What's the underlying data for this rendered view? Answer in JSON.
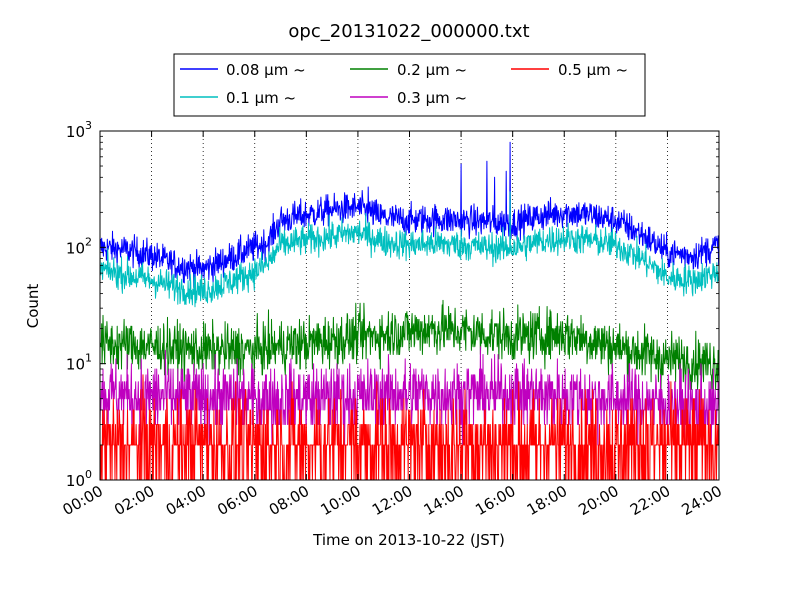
{
  "chart_data": {
    "type": "line",
    "title": "opc_20131022_000000.txt",
    "xlabel": "Time on 2013-10-22 (JST)",
    "ylabel": "Count",
    "y_scale": "log",
    "xlim": [
      "00:00",
      "24:00"
    ],
    "ylim": [
      1,
      1000
    ],
    "x_ticks": [
      "00:00",
      "02:00",
      "04:00",
      "06:00",
      "08:00",
      "10:00",
      "12:00",
      "14:00",
      "16:00",
      "18:00",
      "20:00",
      "22:00",
      "24:00"
    ],
    "y_ticks": [
      {
        "base": "10",
        "exp": "0",
        "value": 1
      },
      {
        "base": "10",
        "exp": "1",
        "value": 10
      },
      {
        "base": "10",
        "exp": "2",
        "value": 100
      },
      {
        "base": "10",
        "exp": "3",
        "value": 1000
      }
    ],
    "grid": "vertical dotted",
    "legend_position": "top-center",
    "series": [
      {
        "name": "0.08 µm ~",
        "color": "#0000ff",
        "noise_decades": 0.09,
        "x_hours": [
          0,
          1,
          2,
          3,
          4,
          5,
          6,
          6.5,
          7,
          8,
          9,
          10,
          11,
          12,
          13,
          14,
          15,
          16,
          17,
          18,
          19,
          20,
          21,
          22,
          23,
          24
        ],
        "y": [
          100,
          95,
          85,
          70,
          65,
          80,
          100,
          110,
          170,
          190,
          210,
          220,
          180,
          170,
          175,
          170,
          165,
          160,
          185,
          200,
          190,
          170,
          130,
          90,
          85,
          105
        ],
        "spikes": [
          {
            "x_hour": 10.4,
            "y": 330
          },
          {
            "x_hour": 14.0,
            "y": 520
          },
          {
            "x_hour": 15.0,
            "y": 550
          },
          {
            "x_hour": 15.3,
            "y": 400
          },
          {
            "x_hour": 15.9,
            "y": 800
          },
          {
            "x_hour": 15.75,
            "y": 450
          }
        ]
      },
      {
        "name": "0.1 µm ~",
        "color": "#00bfbf",
        "noise_decades": 0.09,
        "x_hours": [
          0,
          1,
          2,
          3,
          4,
          5,
          6,
          6.5,
          7,
          8,
          9,
          10,
          11,
          12,
          13,
          14,
          15,
          16,
          17,
          18,
          19,
          20,
          21,
          22,
          23,
          24
        ],
        "y": [
          65,
          58,
          52,
          45,
          42,
          50,
          62,
          72,
          105,
          115,
          125,
          135,
          112,
          105,
          108,
          105,
          100,
          98,
          112,
          120,
          115,
          105,
          80,
          55,
          52,
          62
        ],
        "spikes": [
          {
            "x_hour": 15.9,
            "y": 300
          }
        ]
      },
      {
        "name": "0.2 µm ~",
        "color": "#008000",
        "noise_decades": 0.15,
        "x_hours": [
          0,
          2,
          4,
          6,
          7,
          8,
          10,
          12,
          13,
          14,
          16,
          18,
          19,
          20,
          22,
          24
        ],
        "y": [
          15,
          14,
          13,
          13,
          14,
          15,
          17,
          19,
          20,
          19,
          17,
          18,
          16,
          14,
          11,
          10
        ],
        "spikes": []
      },
      {
        "name": "0.3 µm ~",
        "color": "#bf00bf",
        "noise_decades": 0.2,
        "x_hours": [
          0,
          4,
          8,
          12,
          16,
          20,
          24
        ],
        "y": [
          5.5,
          5,
          5,
          5.5,
          5.5,
          5,
          4
        ],
        "spikes": []
      },
      {
        "name": "0.5 µm ~",
        "color": "#ff0000",
        "noise_decades": 0.3,
        "x_hours": [
          0,
          24
        ],
        "y": [
          2,
          2
        ],
        "spikes": []
      }
    ]
  }
}
